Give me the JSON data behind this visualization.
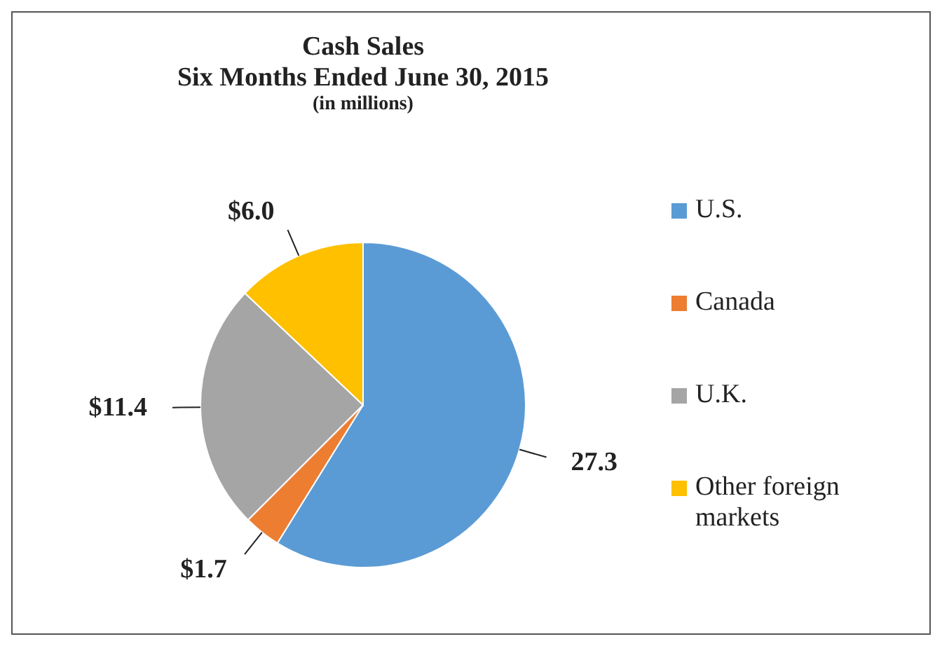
{
  "chart_data": {
    "type": "pie",
    "title": "Cash Sales",
    "subtitle": "Six Months Ended June 30, 2015",
    "annotations": [
      "(in millions)"
    ],
    "categories": [
      "U.S.",
      "Canada",
      "U.K.",
      "Other foreign markets"
    ],
    "values": [
      27.3,
      1.7,
      11.4,
      6.0
    ],
    "value_labels": [
      "27.3",
      "$1.7",
      "$11.4",
      "$6.0"
    ],
    "colors": [
      "#5b9bd5",
      "#ed7d31",
      "#a5a5a5",
      "#ffc000"
    ],
    "legend": "right"
  }
}
